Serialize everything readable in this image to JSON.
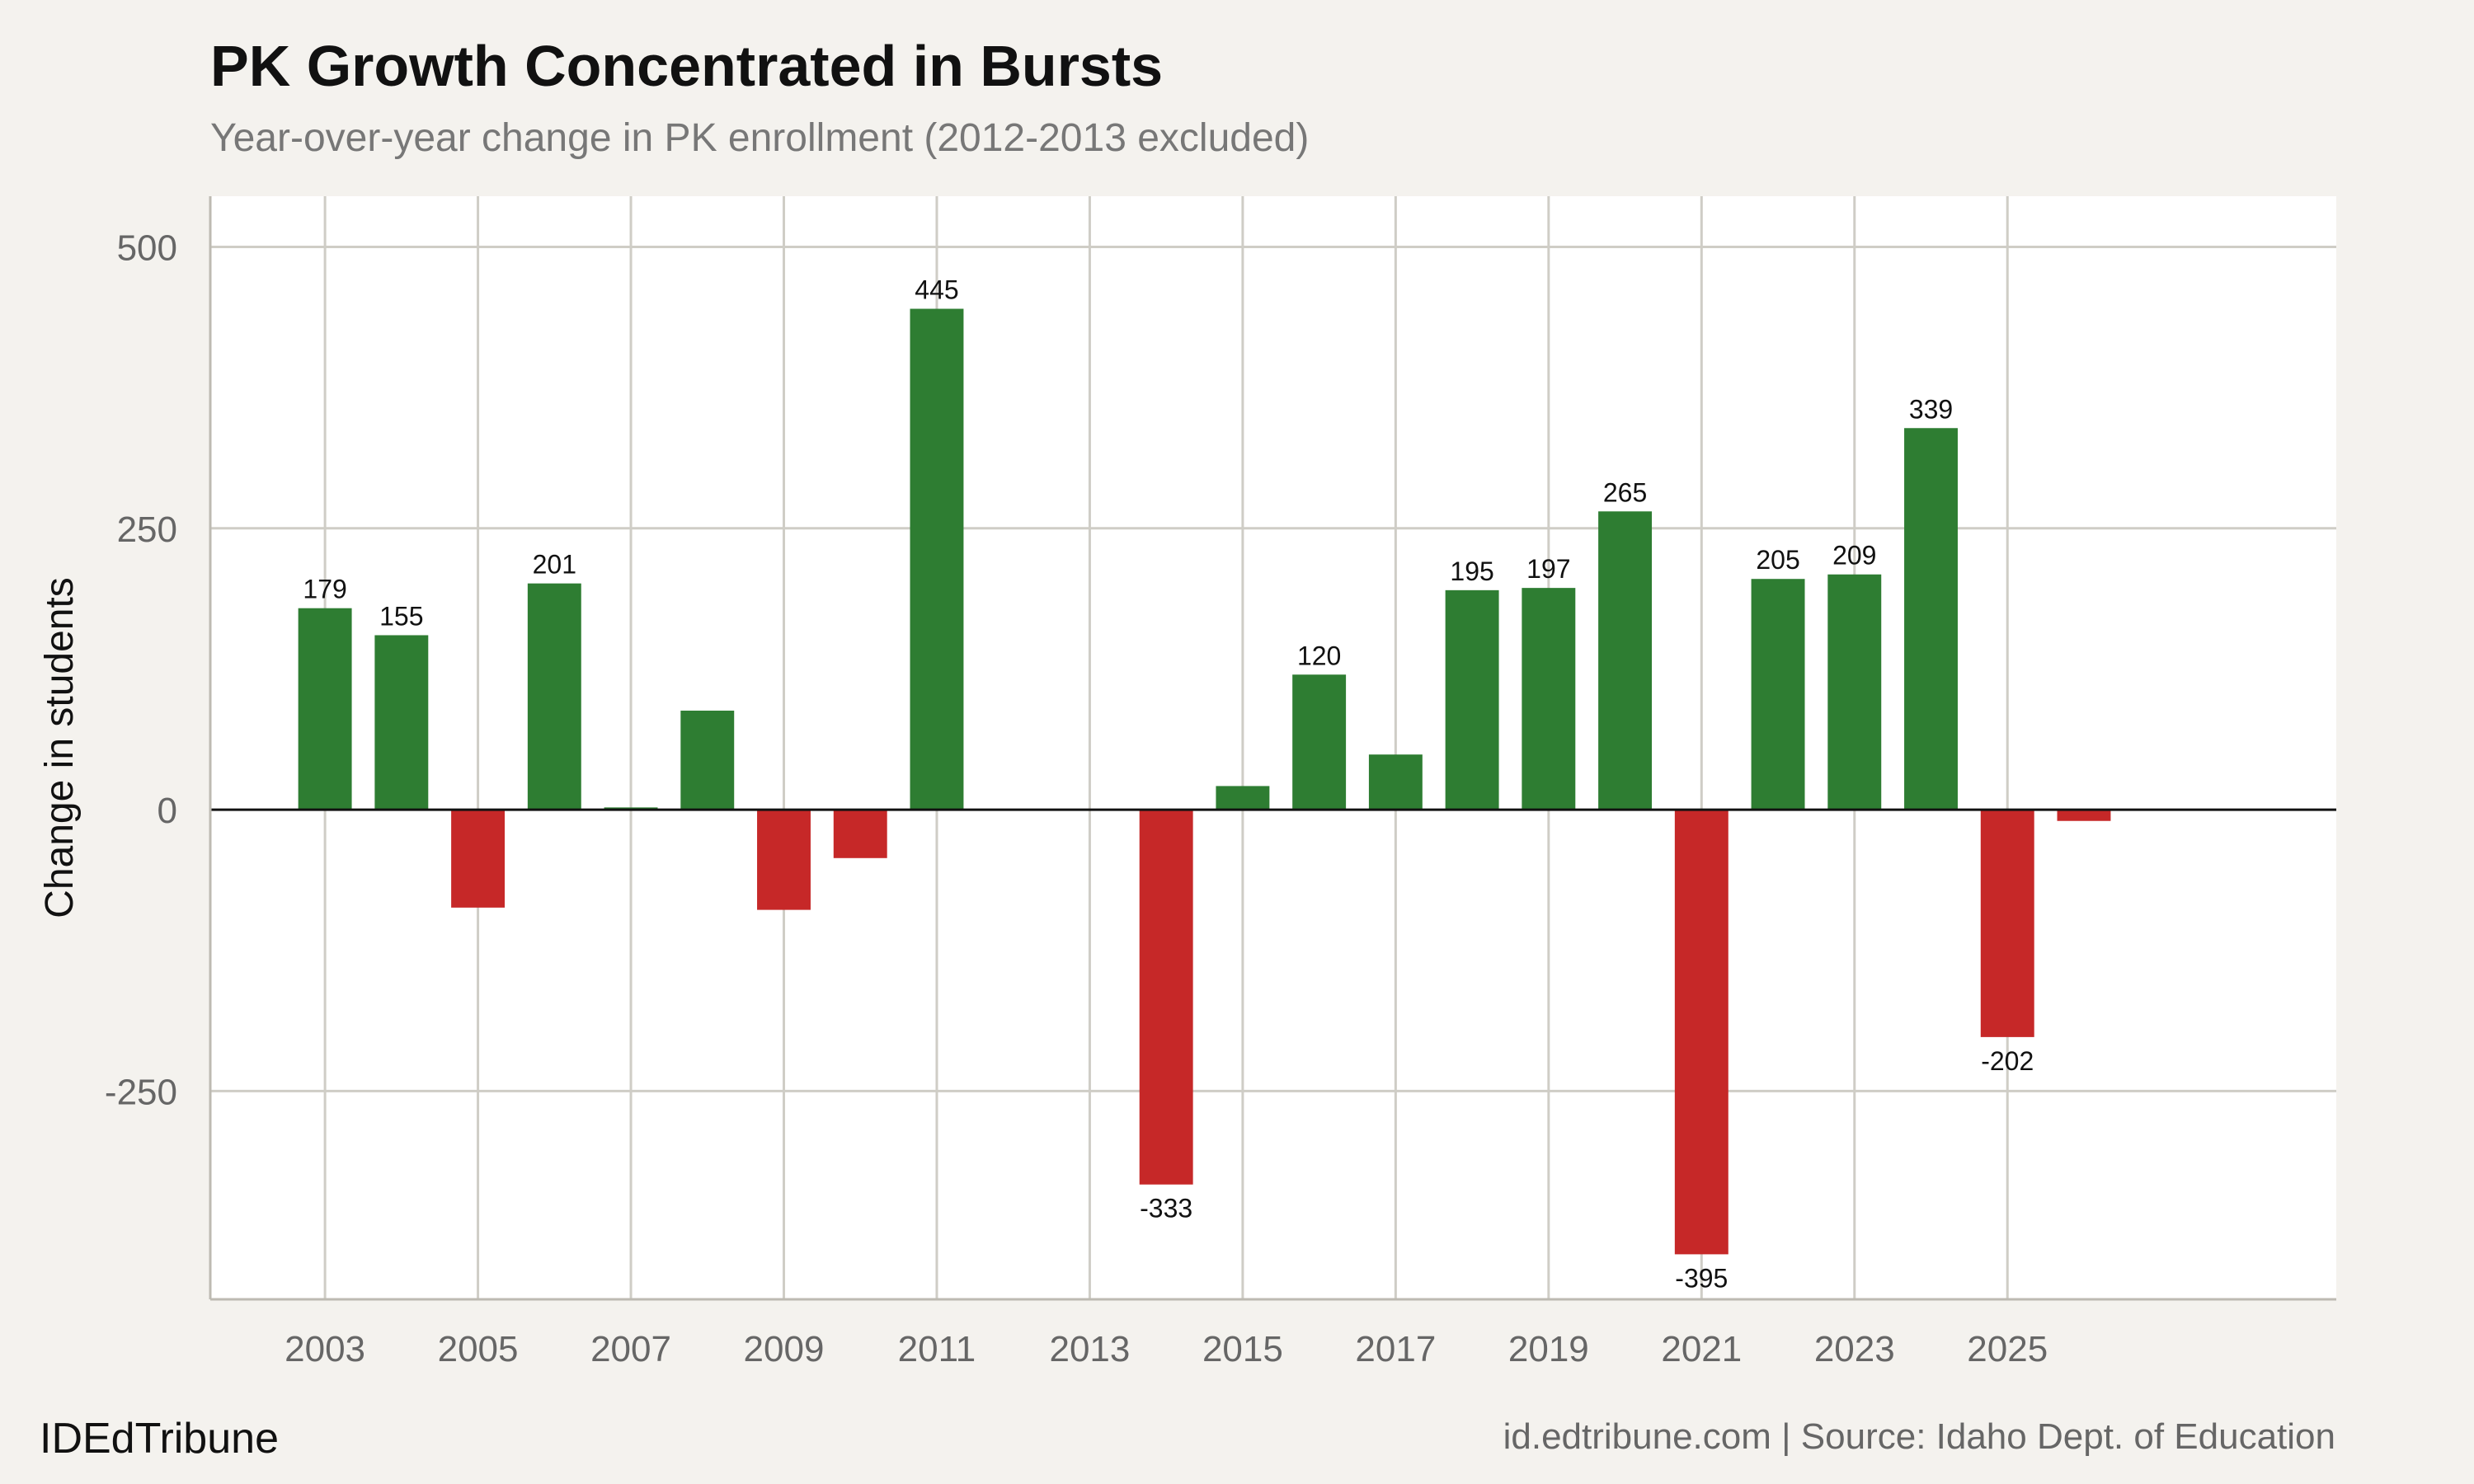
{
  "header": {
    "title": "PK Growth Concentrated in Bursts",
    "subtitle": "Year-over-year change in PK enrollment (2012-2013 excluded)"
  },
  "footer": {
    "brand": "IDEdTribune",
    "source": "id.edtribune.com | Source: Idaho Dept. of Education"
  },
  "colors": {
    "positive": "#2e7d32",
    "negative": "#c62828",
    "grid": "#cfcdc6",
    "panel": "#ffffff",
    "background": "#f4f2ee"
  },
  "chart_data": {
    "type": "bar",
    "title": "PK Growth Concentrated in Bursts",
    "subtitle": "Year-over-year change in PK enrollment (2012-2013 excluded)",
    "xlabel": "",
    "ylabel": "Change in students",
    "xlim": [
      2001.5,
      2029.3
    ],
    "ylim": [
      -435,
      545
    ],
    "x_ticks": [
      2003,
      2005,
      2007,
      2009,
      2011,
      2013,
      2015,
      2017,
      2019,
      2021,
      2023,
      2025
    ],
    "y_ticks": [
      -250,
      0,
      250,
      500
    ],
    "grid": true,
    "bars": [
      {
        "x": 2003,
        "value": 179,
        "label": "179"
      },
      {
        "x": 2004,
        "value": 155,
        "label": "155"
      },
      {
        "x": 2005,
        "value": -87,
        "label": ""
      },
      {
        "x": 2006,
        "value": 201,
        "label": "201"
      },
      {
        "x": 2007,
        "value": 2,
        "label": ""
      },
      {
        "x": 2008,
        "value": 88,
        "label": ""
      },
      {
        "x": 2009,
        "value": -89,
        "label": ""
      },
      {
        "x": 2010,
        "value": -43,
        "label": ""
      },
      {
        "x": 2011,
        "value": 445,
        "label": "445"
      },
      {
        "x": 2014,
        "value": -333,
        "label": "-333"
      },
      {
        "x": 2015,
        "value": 21,
        "label": ""
      },
      {
        "x": 2016,
        "value": 120,
        "label": "120"
      },
      {
        "x": 2017,
        "value": 49,
        "label": ""
      },
      {
        "x": 2018,
        "value": 195,
        "label": "195"
      },
      {
        "x": 2019,
        "value": 197,
        "label": "197"
      },
      {
        "x": 2020,
        "value": 265,
        "label": "265"
      },
      {
        "x": 2021,
        "value": -395,
        "label": "-395"
      },
      {
        "x": 2022,
        "value": 205,
        "label": "205"
      },
      {
        "x": 2023,
        "value": 209,
        "label": "209"
      },
      {
        "x": 2024,
        "value": 339,
        "label": "339"
      },
      {
        "x": 2025,
        "value": -202,
        "label": "-202"
      },
      {
        "x": 2026,
        "value": -10,
        "label": ""
      }
    ]
  }
}
